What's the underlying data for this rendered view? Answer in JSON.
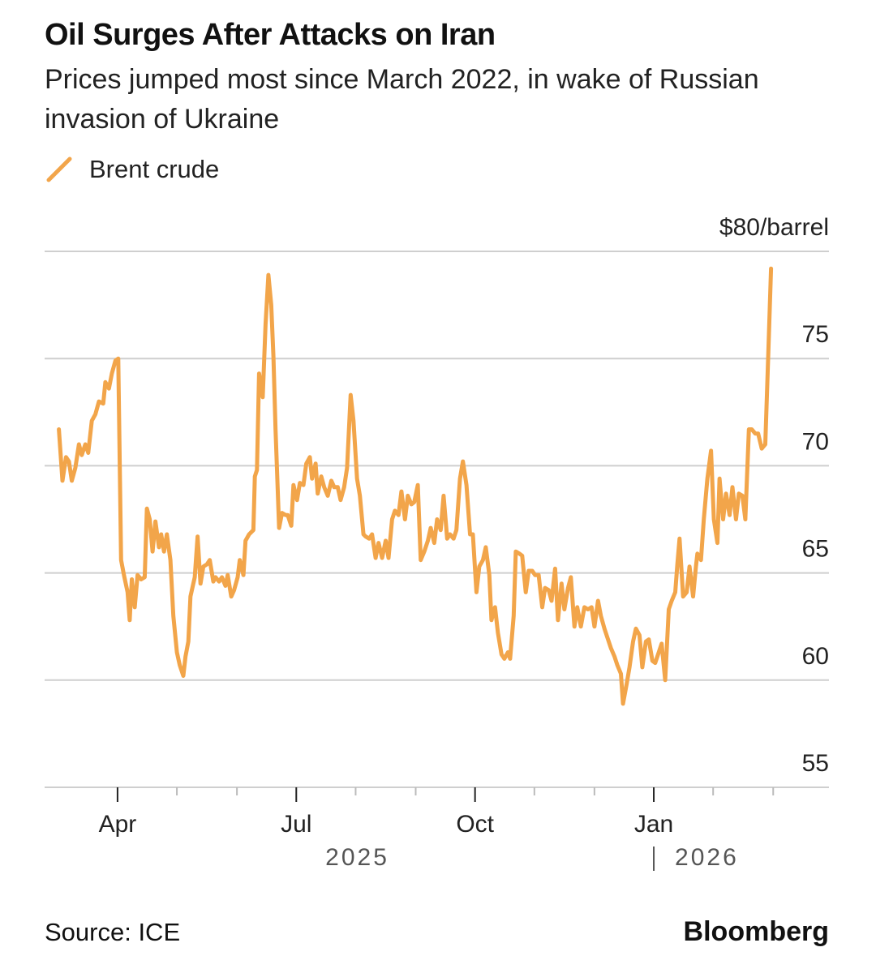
{
  "chart_data": {
    "type": "line",
    "title": "Oil Surges After Attacks on Iran",
    "subtitle": "Prices jumped most since March 2022, in wake of Russian invasion of Ukraine",
    "source": "Source: ICE",
    "brand": "Bloomberg",
    "years": [
      "2025",
      "2026"
    ],
    "xlim": [
      2025.148,
      2026.245
    ],
    "xticks": [
      {
        "value": 2025.25,
        "label": "Apr"
      },
      {
        "value": 2025.5,
        "label": "Jul"
      },
      {
        "value": 2025.75,
        "label": "Oct"
      },
      {
        "value": 2026.0,
        "label": "Jan"
      }
    ],
    "xminorticks": [
      2025.333,
      2025.417,
      2025.583,
      2025.667,
      2025.833,
      2025.917,
      2026.083,
      2026.167
    ],
    "ylim": [
      55,
      80
    ],
    "yticks": [
      55,
      60,
      65,
      70,
      75,
      {
        "value": 80,
        "label": "$80/barrel"
      }
    ],
    "grid": true,
    "x": [
      2025.168,
      2025.173,
      2025.178,
      2025.182,
      2025.186,
      2025.191,
      2025.196,
      2025.2,
      2025.205,
      2025.209,
      2025.214,
      2025.219,
      2025.224,
      2025.23,
      2025.233,
      2025.238,
      2025.242,
      2025.247,
      2025.251,
      2025.255,
      2025.259,
      2025.264,
      2025.267,
      2025.27,
      2025.274,
      2025.278,
      2025.283,
      2025.288,
      2025.291,
      2025.295,
      2025.299,
      2025.303,
      2025.308,
      2025.311,
      2025.315,
      2025.319,
      2025.324,
      2025.328,
      2025.333,
      2025.337,
      2025.342,
      2025.345,
      2025.349,
      2025.352,
      2025.358,
      2025.362,
      2025.366,
      2025.37,
      2025.375,
      2025.379,
      2025.384,
      2025.387,
      2025.392,
      2025.396,
      2025.401,
      2025.404,
      2025.409,
      2025.413,
      2025.418,
      2025.421,
      2025.426,
      2025.429,
      2025.434,
      2025.44,
      2025.442,
      2025.445,
      2025.448,
      2025.453,
      2025.457,
      2025.461,
      2025.465,
      2025.468,
      2025.471,
      2025.476,
      2025.48,
      2025.485,
      2025.488,
      2025.493,
      2025.496,
      2025.501,
      2025.505,
      2025.51,
      2025.514,
      2025.519,
      2025.522,
      2025.527,
      2025.53,
      2025.535,
      2025.539,
      2025.544,
      2025.549,
      2025.553,
      2025.558,
      2025.562,
      2025.567,
      2025.571,
      2025.576,
      2025.58,
      2025.585,
      2025.589,
      2025.594,
      2025.597,
      2025.602,
      2025.606,
      2025.611,
      2025.615,
      2025.62,
      2025.625,
      2025.629,
      2025.634,
      2025.638,
      2025.643,
      2025.647,
      2025.652,
      2025.656,
      2025.661,
      2025.665,
      2025.67,
      2025.674,
      2025.679,
      2025.684,
      2025.688,
      2025.693,
      2025.697,
      2025.702,
      2025.706,
      2025.711,
      2025.715,
      2025.72,
      2025.724,
      2025.729,
      2025.733,
      2025.738,
      2025.743,
      2025.747,
      2025.752,
      2025.756,
      2025.761,
      2025.765,
      2025.77,
      2025.773,
      2025.778,
      2025.782,
      2025.787,
      2025.791,
      2025.796,
      2025.799,
      2025.804,
      2025.807,
      2025.812,
      2025.816,
      2025.821,
      2025.825,
      2025.83,
      2025.834,
      2025.839,
      2025.844,
      2025.848,
      2025.853,
      2025.857,
      2025.862,
      2025.866,
      2025.871,
      2025.875,
      2025.88,
      2025.884,
      2025.889,
      2025.893,
      2025.898,
      2025.903,
      2025.908,
      2025.913,
      2025.917,
      2025.922,
      2025.926,
      2025.931,
      2025.935,
      2025.94,
      2025.945,
      2025.949,
      2025.954,
      2025.957,
      2025.962,
      2025.966,
      2025.971,
      2025.975,
      2025.98,
      2025.984,
      2025.989,
      2025.993,
      2025.998,
      2026.002,
      2026.007,
      2026.011,
      2026.016,
      2026.021,
      2026.025,
      2026.03,
      2026.033,
      2026.036,
      2026.041,
      2026.046,
      2026.05,
      2026.055,
      2026.059,
      2026.061,
      2026.066,
      2026.07,
      2026.075,
      2026.08,
      2026.084,
      2026.089,
      2026.092,
      2026.097,
      2026.101,
      2026.106,
      2026.11,
      2026.115,
      2026.119,
      2026.124,
      2026.128,
      2026.133,
      2026.137,
      2026.142,
      2026.146,
      2026.151,
      2026.156,
      2026.16,
      2026.164
    ],
    "series": [
      {
        "name": "Brent crude",
        "color": "#f2a54a",
        "values": [
          71.7,
          69.3,
          70.4,
          70.2,
          69.3,
          69.9,
          71.0,
          70.5,
          71.0,
          70.6,
          72.1,
          72.4,
          73.0,
          72.9,
          73.9,
          73.6,
          74.3,
          74.9,
          75.0,
          65.6,
          64.9,
          64.1,
          62.8,
          64.7,
          63.4,
          64.9,
          64.7,
          64.8,
          68.0,
          67.5,
          66.0,
          67.4,
          66.2,
          66.8,
          66.0,
          66.8,
          65.6,
          63.0,
          61.3,
          60.7,
          60.2,
          61.1,
          61.8,
          63.9,
          64.8,
          66.7,
          64.5,
          65.3,
          65.4,
          65.6,
          64.6,
          64.8,
          64.6,
          64.8,
          64.4,
          64.9,
          63.9,
          64.2,
          64.8,
          65.6,
          64.9,
          66.5,
          66.8,
          67.0,
          69.5,
          69.8,
          74.3,
          73.2,
          76.6,
          78.9,
          77.5,
          75.1,
          71.7,
          67.1,
          67.8,
          67.7,
          67.7,
          67.2,
          69.1,
          68.4,
          69.2,
          69.1,
          70.1,
          70.4,
          69.4,
          70.1,
          68.7,
          69.5,
          69.0,
          68.6,
          69.3,
          69.0,
          69.0,
          68.4,
          69.0,
          69.9,
          73.3,
          72.1,
          69.4,
          68.6,
          66.8,
          66.7,
          66.6,
          66.8,
          65.7,
          66.4,
          65.7,
          66.5,
          65.7,
          67.5,
          67.9,
          67.7,
          68.8,
          67.5,
          68.6,
          68.2,
          68.3,
          69.1,
          65.6,
          66.0,
          66.5,
          67.1,
          66.4,
          67.5,
          67.0,
          68.6,
          66.6,
          66.8,
          66.6,
          67.0,
          69.4,
          70.2,
          69.1,
          66.8,
          66.8,
          64.1,
          65.3,
          65.6,
          66.2,
          64.9,
          62.8,
          63.4,
          62.2,
          61.2,
          61.0,
          61.3,
          61.0,
          63.0,
          66.0,
          65.9,
          65.8,
          64.1,
          65.1,
          65.1,
          64.9,
          64.9,
          63.4,
          64.3,
          64.2,
          63.7,
          65.2,
          62.8,
          64.5,
          63.3,
          64.3,
          64.8,
          62.5,
          63.4,
          62.5,
          63.4,
          63.3,
          63.4,
          62.5,
          63.7,
          63.0,
          62.4,
          62.0,
          61.5,
          61.1,
          60.7,
          60.3,
          58.9,
          59.8,
          60.6,
          61.8,
          62.4,
          62.1,
          60.6,
          61.8,
          61.9,
          60.9,
          60.8,
          61.3,
          61.7,
          60.0,
          63.3,
          63.7,
          64.1,
          65.4,
          66.6,
          63.9,
          64.1,
          65.3,
          63.9,
          65.3,
          65.9,
          65.6,
          67.5,
          69.4,
          70.7,
          67.5,
          66.4,
          69.4,
          67.5,
          68.7,
          67.7,
          69.0,
          67.5,
          68.7,
          68.6,
          67.5,
          71.7,
          71.7,
          71.5,
          71.5,
          70.8,
          71.0,
          75.1,
          79.2
        ]
      }
    ]
  }
}
